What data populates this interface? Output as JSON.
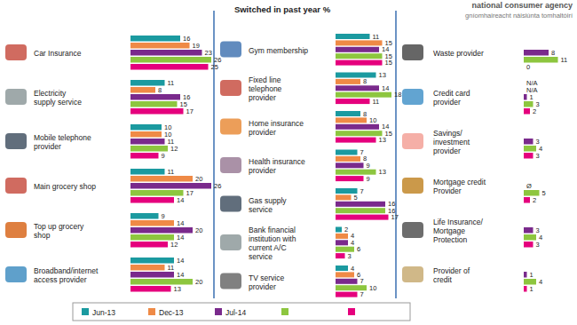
{
  "chart_data": {
    "type": "bar",
    "orientation": "horizontal",
    "title": "Switched in past year %",
    "annotations": [
      "national consumer agency",
      "gníomhaireacht náisiúnta tomhaltóirí"
    ],
    "categories": [
      "Car Insurance",
      "Electricity supply service",
      "Mobile telephone provider",
      "Main grocery shop",
      "Top up grocery shop",
      "Broadband/internet access provider",
      "Gym membership",
      "Fixed line telephone provider",
      "Home insurance provider",
      "Health insurance provider",
      "Gas supply service",
      "Bank financial institution with current A/C service",
      "TV service provider",
      "Waste provider",
      "Credit card provider",
      "Savings/ investment provider",
      "Mortgage credit Provider",
      "Life Insurance/ Mortgage Protection",
      "Provider of credit"
    ],
    "series": [
      {
        "name": "Jun-13",
        "color": "#1b9aa0",
        "values": [
          16,
          11,
          10,
          11,
          9,
          14,
          11,
          13,
          8,
          7,
          7,
          2,
          4,
          null,
          null,
          null,
          null,
          null,
          null
        ],
        "value_labels": [
          null,
          null,
          null,
          null,
          null,
          null,
          null,
          null,
          null,
          null,
          null,
          null,
          null,
          null,
          "N/A",
          null,
          null,
          null,
          null
        ]
      },
      {
        "name": "Dec-13",
        "color": "#ef8a46",
        "values": [
          19,
          8,
          10,
          20,
          14,
          11,
          15,
          8,
          10,
          8,
          5,
          4,
          6,
          null,
          null,
          null,
          null,
          null,
          null
        ],
        "value_labels": [
          null,
          null,
          null,
          null,
          null,
          null,
          null,
          null,
          null,
          null,
          null,
          null,
          null,
          null,
          "N/A",
          null,
          null,
          null,
          null
        ]
      },
      {
        "name": "Jul-14",
        "color": "#7a2a8c",
        "values": [
          23,
          16,
          11,
          26,
          20,
          14,
          14,
          14,
          14,
          9,
          16,
          4,
          7,
          8,
          1,
          3,
          0,
          3,
          1
        ],
        "value_labels": [
          null,
          null,
          null,
          null,
          null,
          null,
          null,
          null,
          null,
          null,
          null,
          null,
          null,
          null,
          null,
          null,
          "Ø",
          null,
          null
        ]
      },
      {
        "color": "#8dc63f",
        "values": [
          26,
          15,
          12,
          17,
          14,
          20,
          15,
          18,
          15,
          13,
          16,
          6,
          10,
          11,
          3,
          4,
          5,
          4,
          4
        ]
      },
      {
        "color": "#e5007d",
        "values": [
          25,
          17,
          9,
          14,
          12,
          13,
          15,
          11,
          13,
          9,
          17,
          3,
          7,
          0,
          2,
          3,
          2,
          3,
          1
        ]
      }
    ],
    "xlim": [
      0,
      30
    ],
    "tick_labels": false,
    "data_labels": true,
    "legend": "bottom"
  }
}
